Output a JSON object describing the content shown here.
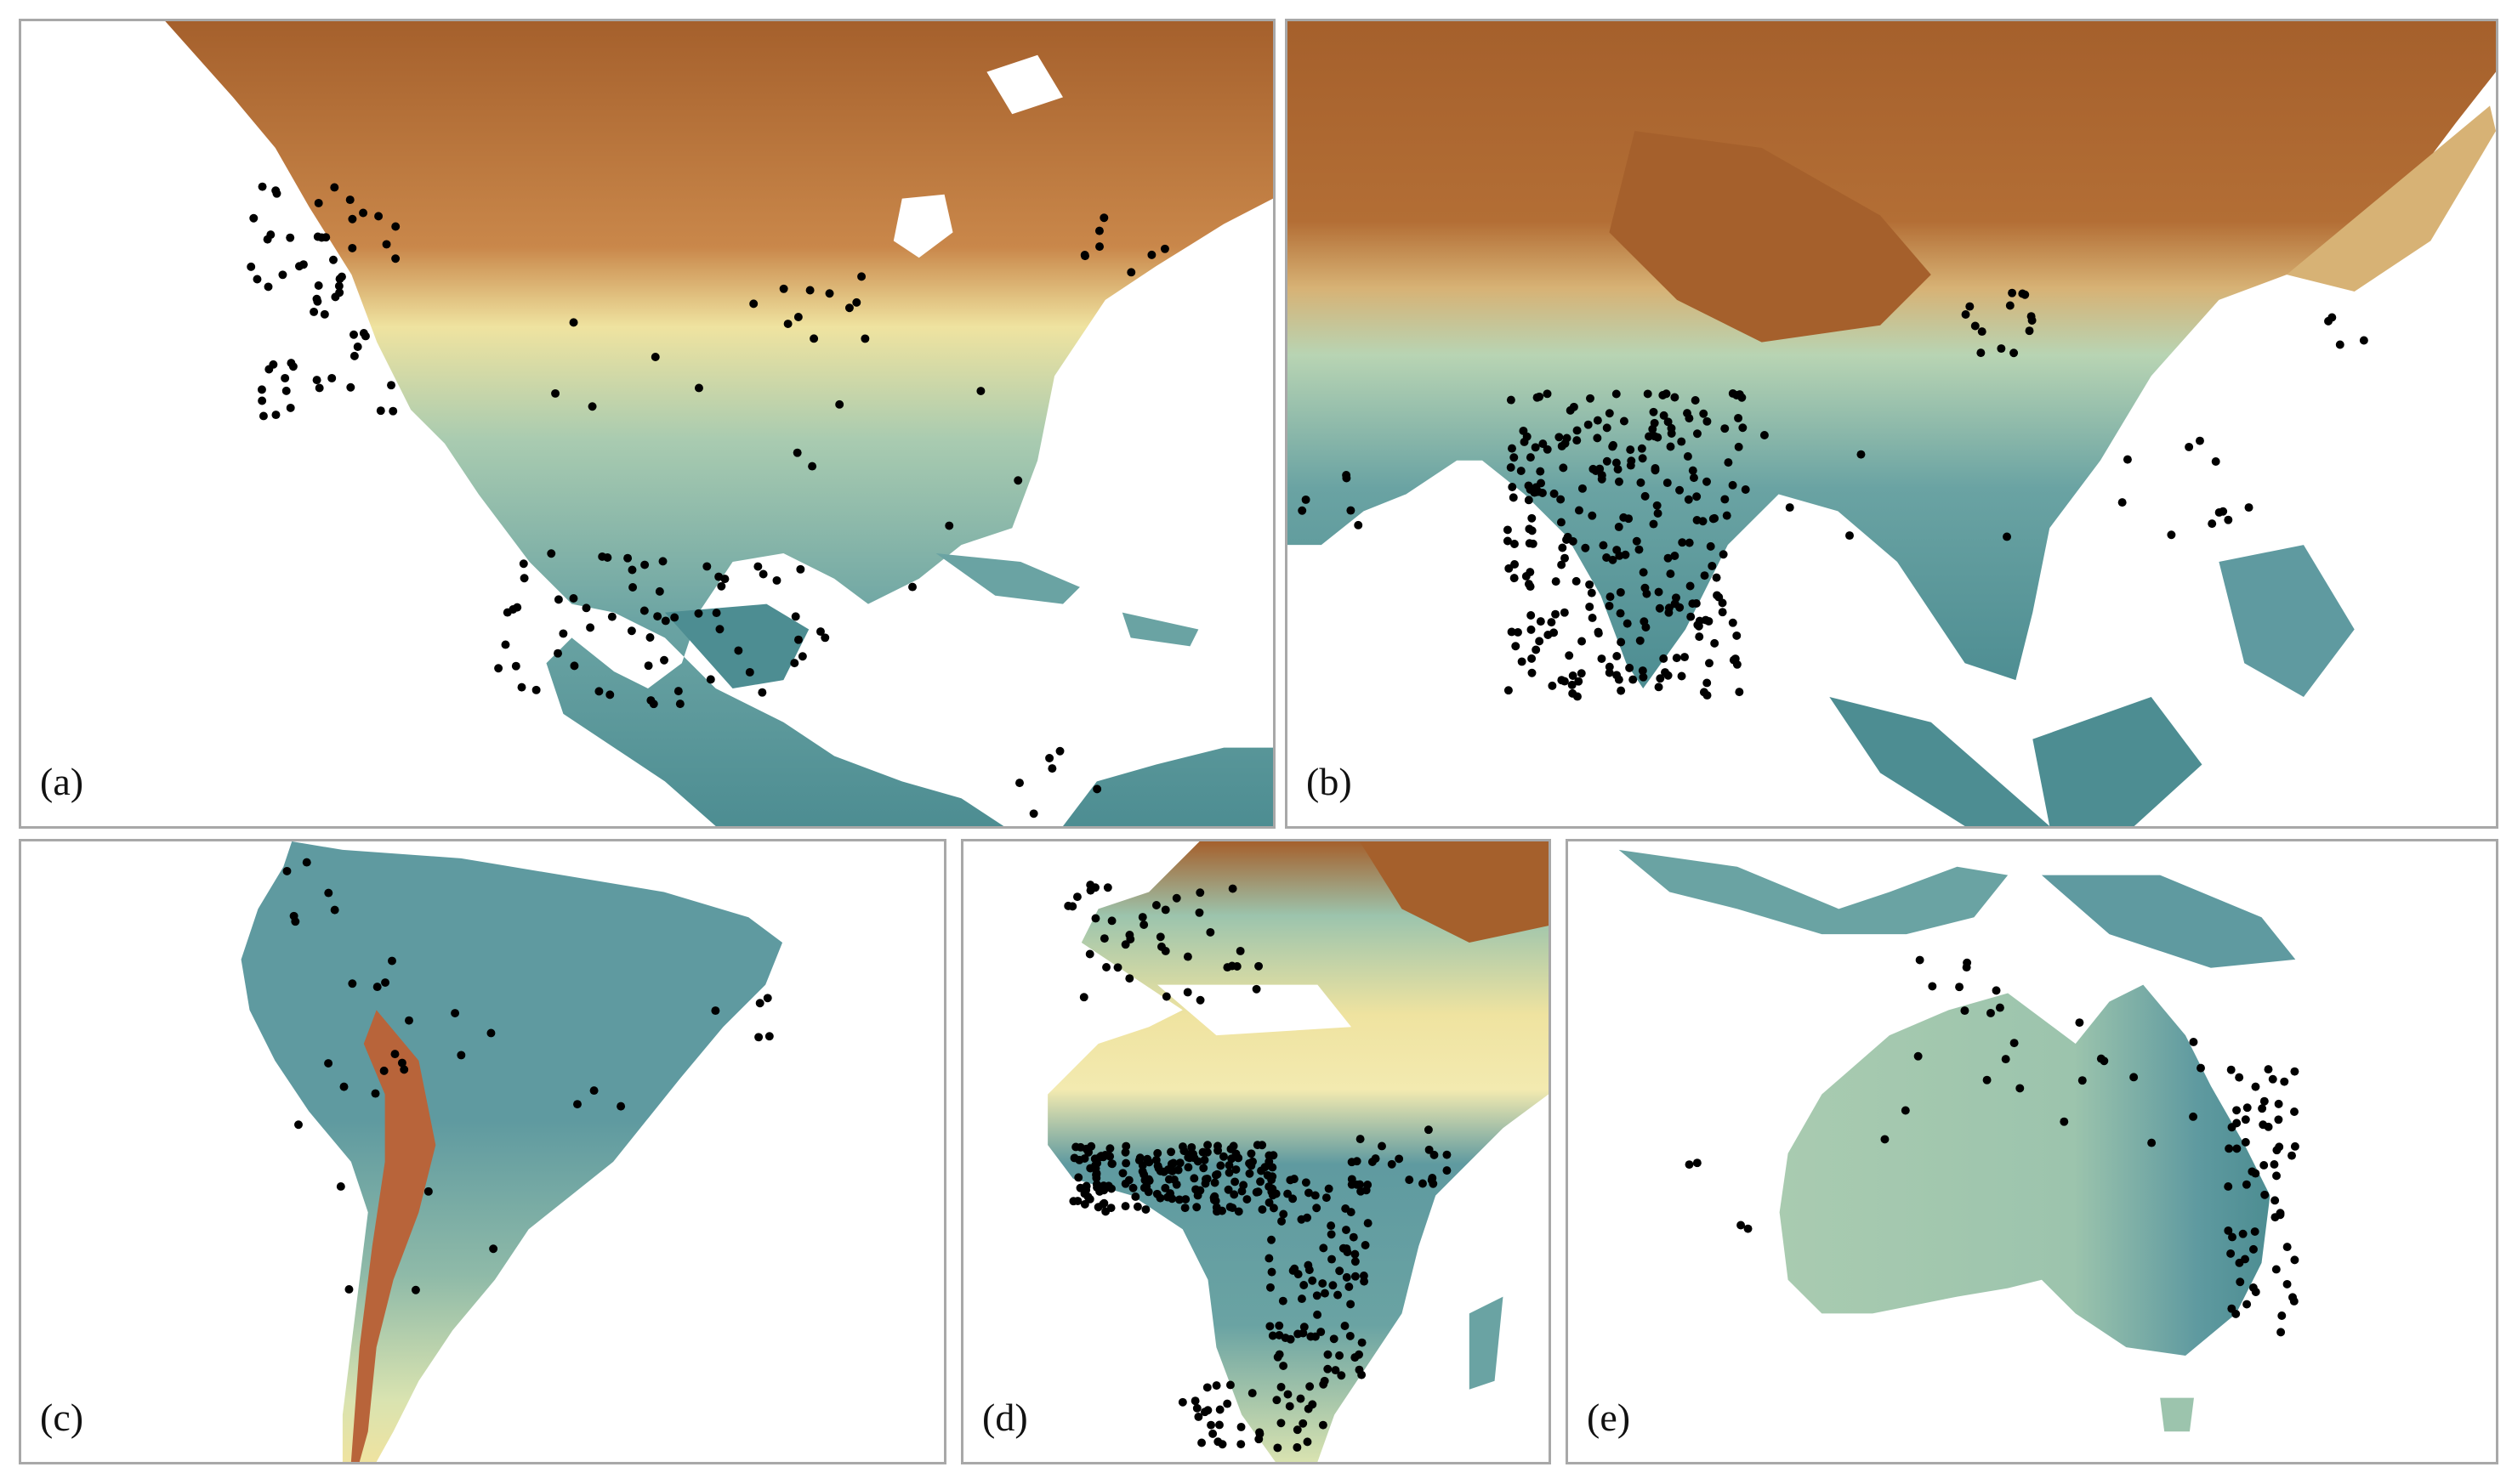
{
  "figure": {
    "palette": {
      "high": "#a5602c",
      "mid_high": "#d0a064",
      "mid": "#efe8a6",
      "mid_low": "#9cc4ad",
      "low": "#5f9aa0",
      "deep": "#3f7f88",
      "point": "#000000"
    },
    "panels": [
      {
        "label": "(a)"
      },
      {
        "label": "(b)"
      },
      {
        "label": "(c)"
      },
      {
        "label": "(d)"
      },
      {
        "label": "(e)"
      }
    ]
  }
}
